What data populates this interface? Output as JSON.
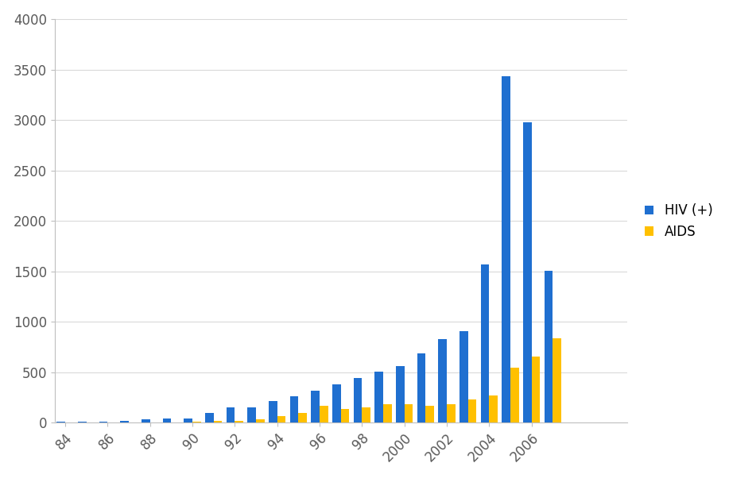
{
  "chart_data": {
    "type": "bar",
    "categories": [
      "84",
      null,
      "86",
      null,
      "88",
      null,
      "90",
      null,
      "92",
      null,
      "94",
      null,
      "96",
      null,
      "98",
      null,
      "2000",
      null,
      "2002",
      null,
      "2004",
      null,
      "2006",
      null,
      null,
      null,
      null
    ],
    "series": [
      {
        "name": "HIV (+)",
        "color": "#1f6fd0",
        "values": [
          10,
          15,
          15,
          20,
          35,
          45,
          45,
          100,
          150,
          150,
          215,
          265,
          315,
          385,
          445,
          510,
          560,
          690,
          830,
          910,
          1570,
          3440,
          2980,
          1510,
          null,
          null,
          null
        ]
      },
      {
        "name": "AIDS",
        "color": "#ffc000",
        "values": [
          0,
          0,
          0,
          2,
          5,
          5,
          10,
          20,
          20,
          35,
          65,
          95,
          165,
          140,
          155,
          185,
          185,
          170,
          185,
          235,
          270,
          550,
          655,
          835,
          null,
          null,
          null
        ]
      }
    ],
    "ylim": [
      0,
      4000
    ],
    "yticks": [
      0,
      500,
      1000,
      1500,
      2000,
      2500,
      3000,
      3500,
      4000
    ],
    "grid": true,
    "legend": "right"
  }
}
